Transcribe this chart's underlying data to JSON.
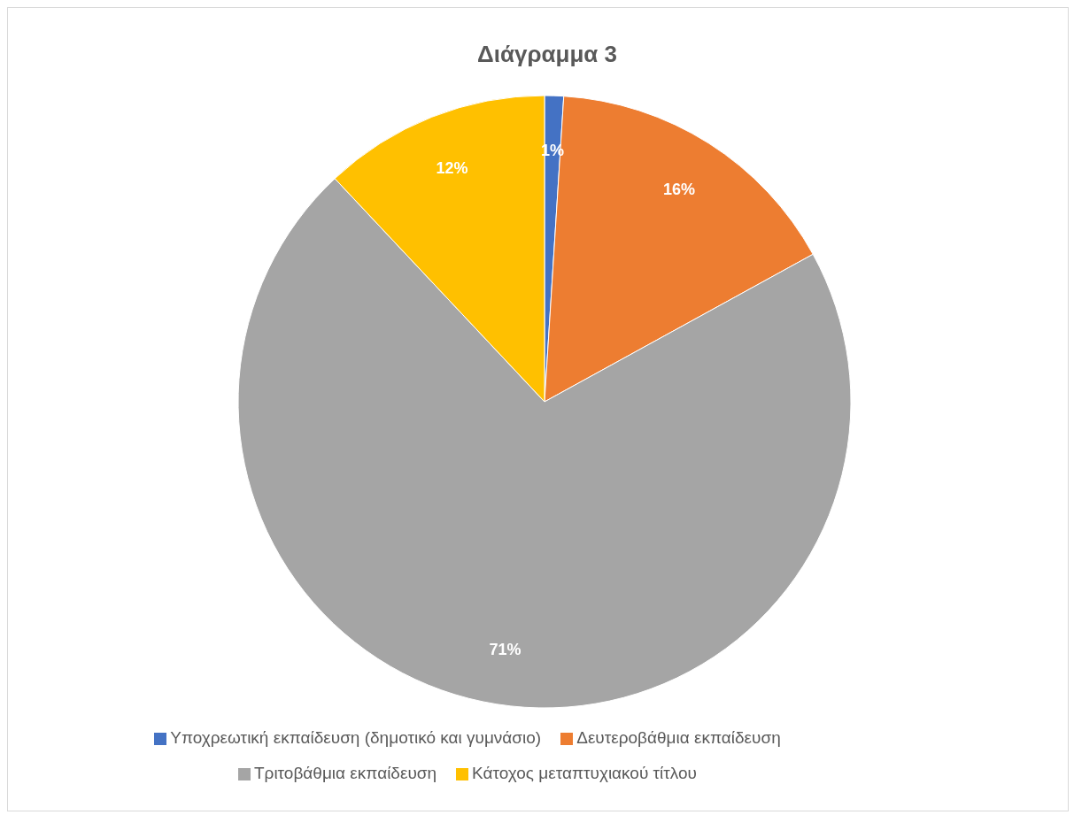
{
  "chart_data": {
    "type": "pie",
    "title": "Διάγραμμα 3",
    "categories": [
      "Υποχρεωτική εκπαίδευση (δημοτικό και γυμνάσιο)",
      "Δευτεροβάθμια εκπαίδευση",
      "Τριτοβάθμια εκπαίδευση",
      "Κάτοχος μεταπτυχιακού τίτλου"
    ],
    "values": [
      1,
      16,
      71,
      12
    ],
    "colors": [
      "#4472c4",
      "#ed7d31",
      "#a5a5a5",
      "#ffc000"
    ],
    "value_labels": [
      "1%",
      "16%",
      "71%",
      "12%"
    ],
    "legend": "bottom"
  }
}
